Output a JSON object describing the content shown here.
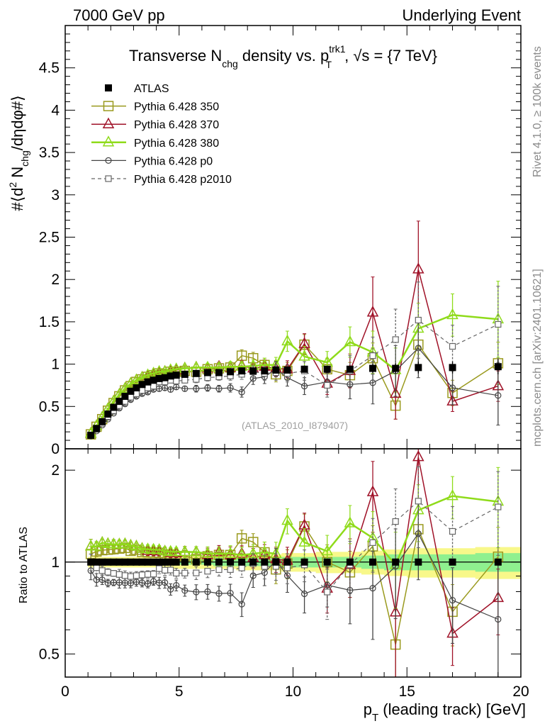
{
  "header": {
    "left": "7000 GeV pp",
    "right": "Underlying Event"
  },
  "side_labels": {
    "rivet": "Rivet 4.1.0, ≥ 100k events",
    "mcplots": "mcplots.cern.ch [arXiv:2401.10621]"
  },
  "reference": "(ATLAS_2010_I879407)",
  "colors": {
    "ATLAS": "#000000",
    "Pythia 6.428 350": "#9a9a1e",
    "Pythia 6.428 370": "#a01228",
    "Pythia 6.428 380": "#8fdb1a",
    "Pythia 6.428 p0": "#444444",
    "Pythia 6.428 p2010": "#666666",
    "band_inner": "#8ff08f",
    "band_outer": "#f8f88a"
  },
  "chart_data": [
    {
      "type": "line",
      "panel": "main",
      "title": "Transverse N_chg density vs. p_T^trk1, √s = {7 TeV}",
      "title_parts": {
        "a": "Transverse N",
        "a_sub": "chg",
        "b": " density vs. p",
        "b_sup": "trk1",
        "b_sub": "T",
        "c": ", √s = {7 TeV}"
      },
      "xlabel": "p_T (leading track) [GeV]",
      "xlabel_parts": {
        "main": "p",
        "sub": "T",
        "rest": " (leading track) [GeV]"
      },
      "ylabel": "#⟨d² N_chg/dηdφ#⟩",
      "ylabel_parts": {
        "a": "#⟨d",
        "sup": "2",
        "b": " N",
        "sub": "chg",
        "c": "/dηdφ#⟩"
      },
      "xlim": [
        0,
        20
      ],
      "ylim": [
        0,
        5
      ],
      "x_ticks": [
        0,
        5,
        10,
        15,
        20
      ],
      "y_ticks": [
        0,
        0.5,
        1,
        1.5,
        2,
        2.5,
        3,
        3.5,
        4,
        4.5
      ],
      "y_tick_labels": [
        "0",
        "0.5",
        "1",
        "1.5",
        "2",
        "2.5",
        "3",
        "3.5",
        "4",
        "4.5"
      ],
      "x": [
        1.125,
        1.375,
        1.625,
        1.875,
        2.125,
        2.375,
        2.625,
        2.875,
        3.125,
        3.375,
        3.625,
        3.875,
        4.125,
        4.375,
        4.625,
        4.875,
        5.25,
        5.75,
        6.25,
        6.75,
        7.25,
        7.75,
        8.25,
        8.75,
        9.25,
        9.75,
        10.5,
        11.5,
        12.5,
        13.5,
        14.5,
        15.5,
        17.0,
        19.0
      ],
      "series": [
        {
          "name": "ATLAS",
          "marker": "square-filled",
          "values": [
            0.16,
            0.24,
            0.32,
            0.41,
            0.49,
            0.56,
            0.62,
            0.68,
            0.72,
            0.76,
            0.79,
            0.81,
            0.83,
            0.84,
            0.86,
            0.87,
            0.88,
            0.89,
            0.9,
            0.9,
            0.91,
            0.92,
            0.92,
            0.92,
            0.93,
            0.93,
            0.94,
            0.94,
            0.94,
            0.95,
            0.95,
            0.96,
            0.96,
            0.97
          ],
          "errors": [
            0.01,
            0.01,
            0.01,
            0.01,
            0.01,
            0.01,
            0.01,
            0.01,
            0.01,
            0.01,
            0.01,
            0.01,
            0.01,
            0.01,
            0.01,
            0.01,
            0.02,
            0.02,
            0.02,
            0.02,
            0.02,
            0.02,
            0.03,
            0.03,
            0.03,
            0.03,
            0.03,
            0.04,
            0.04,
            0.05,
            0.06,
            0.07,
            0.07,
            0.09
          ]
        },
        {
          "name": "Pythia 6.428 350",
          "marker": "square-open",
          "line": "solid",
          "values": [
            0.17,
            0.26,
            0.35,
            0.45,
            0.54,
            0.62,
            0.69,
            0.74,
            0.79,
            0.82,
            0.85,
            0.87,
            0.89,
            0.88,
            0.91,
            0.91,
            0.92,
            0.91,
            0.94,
            0.95,
            0.96,
            1.1,
            1.07,
            0.99,
            0.88,
            0.92,
            1.23,
            0.94,
            0.87,
            1.07,
            0.51,
            1.23,
            0.66,
            1.01
          ],
          "errors": [
            0.01,
            0.01,
            0.01,
            0.01,
            0.02,
            0.02,
            0.02,
            0.02,
            0.02,
            0.02,
            0.03,
            0.03,
            0.03,
            0.03,
            0.03,
            0.03,
            0.04,
            0.04,
            0.05,
            0.05,
            0.06,
            0.07,
            0.07,
            0.08,
            0.09,
            0.1,
            0.12,
            0.13,
            0.15,
            0.18,
            0.16,
            0.26,
            0.15,
            0.25
          ]
        },
        {
          "name": "Pythia 6.428 370",
          "marker": "triangle-open",
          "line": "solid",
          "values": [
            0.18,
            0.27,
            0.37,
            0.47,
            0.56,
            0.64,
            0.71,
            0.77,
            0.81,
            0.84,
            0.86,
            0.88,
            0.9,
            0.91,
            0.92,
            0.93,
            0.95,
            0.96,
            0.95,
            0.97,
            0.96,
            0.98,
            0.95,
            0.97,
            0.95,
            0.94,
            1.24,
            0.77,
            0.92,
            1.61,
            0.65,
            2.12,
            0.56,
            0.74
          ],
          "errors": [
            0.01,
            0.01,
            0.01,
            0.01,
            0.02,
            0.02,
            0.02,
            0.02,
            0.02,
            0.02,
            0.03,
            0.03,
            0.03,
            0.03,
            0.03,
            0.03,
            0.04,
            0.04,
            0.05,
            0.05,
            0.06,
            0.06,
            0.07,
            0.08,
            0.09,
            0.1,
            0.12,
            0.13,
            0.2,
            0.42,
            0.3,
            0.57,
            0.12,
            0.18
          ]
        },
        {
          "name": "Pythia 6.428 380",
          "marker": "triangle-open",
          "line": "solid",
          "line_width": 2.5,
          "values": [
            0.18,
            0.27,
            0.37,
            0.47,
            0.56,
            0.64,
            0.71,
            0.77,
            0.81,
            0.84,
            0.87,
            0.89,
            0.91,
            0.91,
            0.93,
            0.94,
            0.95,
            0.96,
            0.96,
            0.96,
            0.97,
            0.97,
            0.98,
            0.99,
            0.99,
            1.27,
            1.09,
            1.02,
            1.26,
            1.14,
            0.93,
            1.42,
            1.58,
            1.53
          ],
          "errors": [
            0.01,
            0.01,
            0.01,
            0.01,
            0.02,
            0.02,
            0.02,
            0.02,
            0.02,
            0.02,
            0.03,
            0.03,
            0.03,
            0.03,
            0.03,
            0.03,
            0.04,
            0.04,
            0.05,
            0.05,
            0.06,
            0.06,
            0.07,
            0.08,
            0.09,
            0.12,
            0.12,
            0.13,
            0.18,
            0.25,
            0.26,
            0.3,
            0.25,
            0.45
          ]
        },
        {
          "name": "Pythia 6.428 p0",
          "marker": "circle-open",
          "line": "solid",
          "line_width": 1.2,
          "values": [
            0.15,
            0.21,
            0.28,
            0.35,
            0.42,
            0.48,
            0.53,
            0.58,
            0.62,
            0.65,
            0.67,
            0.7,
            0.71,
            0.72,
            0.7,
            0.73,
            0.71,
            0.71,
            0.72,
            0.71,
            0.72,
            0.67,
            0.83,
            0.85,
            0.94,
            0.84,
            0.74,
            0.79,
            0.76,
            0.78,
            0.92,
            1.19,
            0.72,
            0.63
          ],
          "errors": [
            0.01,
            0.01,
            0.01,
            0.01,
            0.01,
            0.02,
            0.02,
            0.02,
            0.02,
            0.02,
            0.02,
            0.02,
            0.03,
            0.03,
            0.03,
            0.03,
            0.03,
            0.04,
            0.04,
            0.04,
            0.05,
            0.06,
            0.07,
            0.08,
            0.09,
            0.1,
            0.1,
            0.12,
            0.17,
            0.25,
            0.3,
            0.35,
            0.2,
            0.35
          ]
        },
        {
          "name": "Pythia 6.428 p2010",
          "marker": "square-open-small",
          "line": "dashed",
          "line_width": 1.2,
          "values": [
            0.16,
            0.23,
            0.3,
            0.38,
            0.45,
            0.51,
            0.56,
            0.61,
            0.65,
            0.69,
            0.72,
            0.74,
            0.79,
            0.79,
            0.81,
            0.8,
            0.81,
            0.82,
            0.84,
            0.85,
            0.86,
            0.88,
            0.91,
            0.89,
            0.9,
            0.89,
            0.92,
            0.75,
            0.92,
            1.1,
            1.29,
            1.52,
            1.21,
            1.47
          ],
          "errors": [
            0.01,
            0.01,
            0.01,
            0.01,
            0.01,
            0.02,
            0.02,
            0.02,
            0.02,
            0.02,
            0.02,
            0.02,
            0.03,
            0.03,
            0.03,
            0.03,
            0.03,
            0.04,
            0.04,
            0.04,
            0.05,
            0.06,
            0.07,
            0.08,
            0.09,
            0.1,
            0.11,
            0.14,
            0.18,
            0.22,
            0.36,
            0.45,
            0.25,
            0.45
          ]
        }
      ],
      "legend": [
        "ATLAS",
        "Pythia 6.428 350",
        "Pythia 6.428 370",
        "Pythia 6.428 380",
        "Pythia 6.428 p0",
        "Pythia 6.428 p2010"
      ],
      "legend_position": "top-left"
    },
    {
      "type": "line",
      "panel": "ratio",
      "ylabel": "Ratio to ATLAS",
      "yscale": "log",
      "ylim": [
        0.42,
        2.35
      ],
      "y_ticks": [
        0.5,
        1,
        2
      ],
      "y_tick_labels": [
        "0.5",
        "1",
        "2"
      ],
      "band_inner": [
        0.02,
        0.02,
        0.02,
        0.02,
        0.02,
        0.02,
        0.02,
        0.02,
        0.02,
        0.02,
        0.02,
        0.02,
        0.02,
        0.02,
        0.02,
        0.02,
        0.02,
        0.02,
        0.02,
        0.03,
        0.03,
        0.03,
        0.03,
        0.03,
        0.03,
        0.04,
        0.04,
        0.04,
        0.04,
        0.05,
        0.06,
        0.06,
        0.06,
        0.07
      ],
      "band_outer": [
        0.04,
        0.04,
        0.04,
        0.04,
        0.04,
        0.04,
        0.04,
        0.04,
        0.04,
        0.04,
        0.04,
        0.04,
        0.04,
        0.05,
        0.05,
        0.05,
        0.05,
        0.05,
        0.05,
        0.05,
        0.05,
        0.06,
        0.06,
        0.06,
        0.06,
        0.07,
        0.07,
        0.08,
        0.08,
        0.09,
        0.1,
        0.11,
        0.11,
        0.12
      ]
    }
  ]
}
